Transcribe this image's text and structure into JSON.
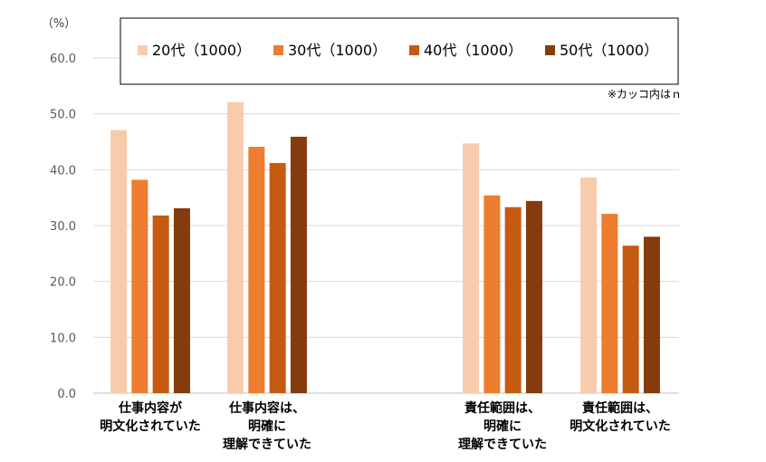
{
  "chart_data": {
    "type": "bar",
    "unit_label": "（%）",
    "note": "※カッコ内はｎ",
    "ylim": [
      0,
      60
    ],
    "yticks": [
      "0.0",
      "10.0",
      "20.0",
      "30.0",
      "40.0",
      "50.0",
      "60.0"
    ],
    "grid": true,
    "legend_position": "top",
    "categories": [
      [
        "仕事内容が",
        "明文化されていた"
      ],
      [
        "仕事内容は、",
        "明確に",
        "理解できていた"
      ],
      [
        "責任範囲は、",
        "明確に",
        "理解できていた"
      ],
      [
        "責任範囲は、",
        "明文化されていた"
      ]
    ],
    "series": [
      {
        "name": "20代（1000）",
        "color": "#F8CBAD",
        "values": [
          47.1,
          52.1,
          44.7,
          38.6
        ]
      },
      {
        "name": "30代（1000）",
        "color": "#ED7D31",
        "values": [
          38.2,
          44.1,
          35.4,
          32.1
        ]
      },
      {
        "name": "40代（1000）",
        "color": "#C55A11",
        "values": [
          31.8,
          41.2,
          33.3,
          26.4
        ]
      },
      {
        "name": "50代（1000）",
        "color": "#843C0C",
        "values": [
          33.1,
          45.9,
          34.4,
          28.0
        ]
      }
    ]
  }
}
